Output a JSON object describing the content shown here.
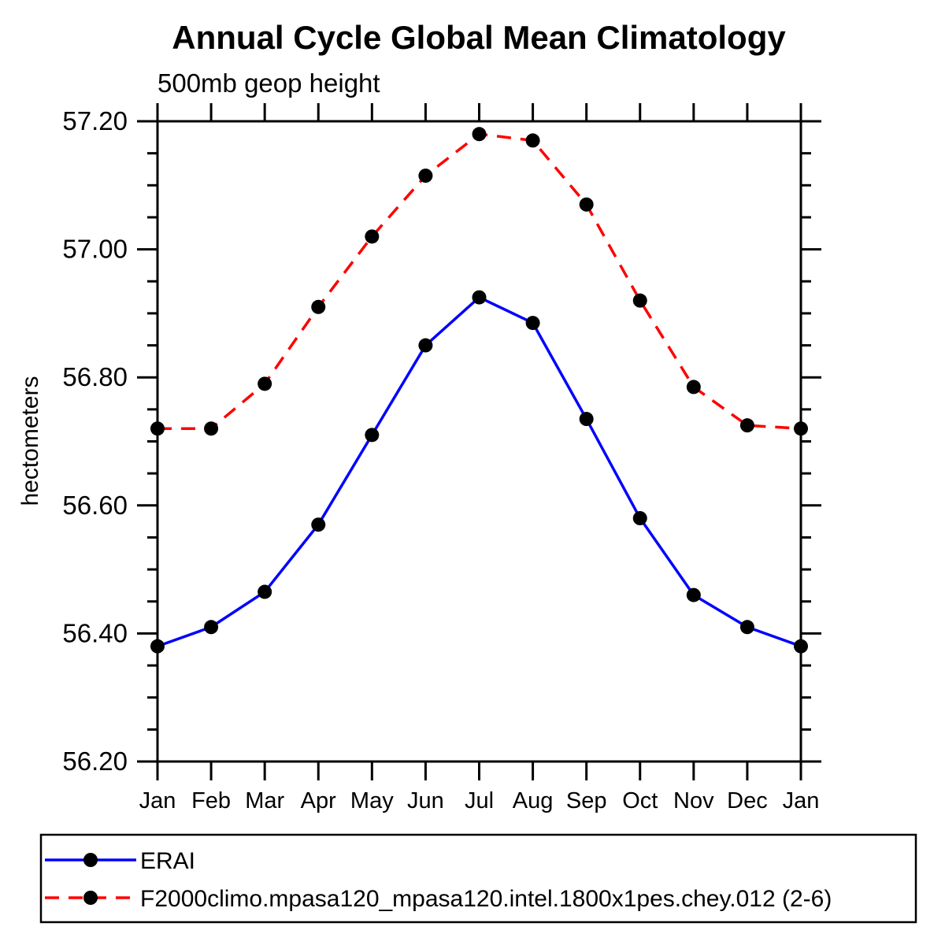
{
  "title": "Annual Cycle Global Mean Climatology",
  "subtitle": "500mb geop height",
  "y_axis_title": "hectometers",
  "colors": {
    "erai_line": "#0000ff",
    "model_line": "#ff0000",
    "marker": "#000000",
    "axis": "#000000",
    "background": "#ffffff"
  },
  "legend": {
    "entries": [
      {
        "label": "ERAI"
      },
      {
        "label": "F2000climo.mpasa120_mpasa120.intel.1800x1pes.chey.012 (2-6)"
      }
    ]
  },
  "chart_data": {
    "type": "line",
    "title": "Annual Cycle Global Mean Climatology",
    "subtitle": "500mb geop height",
    "xlabel": "",
    "ylabel": "hectometers",
    "categories": [
      "Jan",
      "Feb",
      "Mar",
      "Apr",
      "May",
      "Jun",
      "Jul",
      "Aug",
      "Sep",
      "Oct",
      "Nov",
      "Dec",
      "Jan"
    ],
    "ylim": [
      56.2,
      57.2
    ],
    "ytick_major_step": 0.2,
    "ytick_minor_step": 0.05,
    "ytick_labels": [
      "56.20",
      "56.40",
      "56.60",
      "56.80",
      "57.00",
      "57.20"
    ],
    "grid": false,
    "legend_position": "bottom-box",
    "series": [
      {
        "name": "ERAI",
        "color": "#0000ff",
        "line_style": "solid",
        "marker": "filled-circle",
        "marker_color": "#000000",
        "values": [
          56.38,
          56.41,
          56.465,
          56.57,
          56.71,
          56.85,
          56.925,
          56.885,
          56.735,
          56.58,
          56.46,
          56.41,
          56.38
        ]
      },
      {
        "name": "F2000climo.mpasa120_mpasa120.intel.1800x1pes.chey.012 (2-6)",
        "color": "#ff0000",
        "line_style": "dashed",
        "marker": "filled-circle",
        "marker_color": "#000000",
        "values": [
          56.72,
          56.72,
          56.79,
          56.91,
          57.02,
          57.115,
          57.18,
          57.17,
          57.07,
          56.92,
          56.785,
          56.725,
          56.72
        ]
      }
    ]
  }
}
